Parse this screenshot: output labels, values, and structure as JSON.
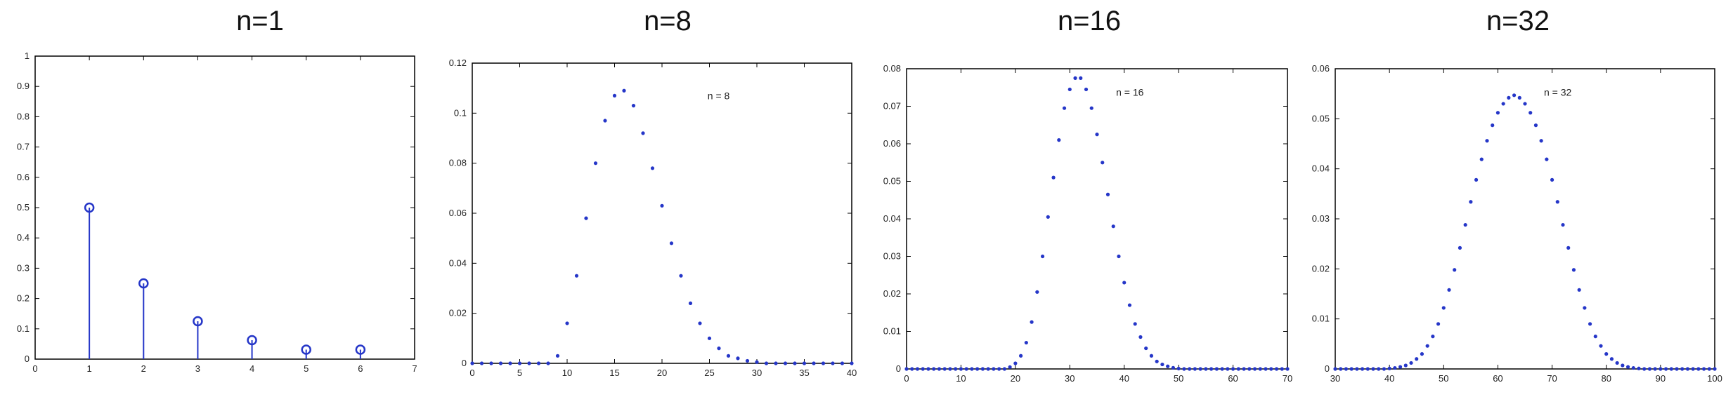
{
  "colors": {
    "marker": "#2536c8",
    "axis": "#000000"
  },
  "chart_data": [
    {
      "type": "stem",
      "title": "n=1",
      "annotation": "",
      "marker": "circle",
      "xlim": [
        0,
        7
      ],
      "ylim": [
        0,
        1
      ],
      "xticks": [
        0,
        1,
        2,
        3,
        4,
        5,
        6,
        7
      ],
      "yticks": [
        0,
        0.1,
        0.2,
        0.3,
        0.4,
        0.5,
        0.6,
        0.7,
        0.8,
        0.9,
        1
      ],
      "x": [
        1,
        2,
        3,
        4,
        5,
        6
      ],
      "y": [
        0.5,
        0.25,
        0.125,
        0.0625,
        0.03125,
        0.03125
      ]
    },
    {
      "type": "scatter",
      "title": "n=8",
      "annotation": "n = 8",
      "marker": "dot",
      "xlim": [
        0,
        40
      ],
      "ylim": [
        0,
        0.12
      ],
      "xticks": [
        0,
        5,
        10,
        15,
        20,
        25,
        30,
        35,
        40
      ],
      "yticks": [
        0,
        0.02,
        0.04,
        0.06,
        0.08,
        0.1,
        0.12
      ],
      "x": [
        0,
        1,
        2,
        3,
        4,
        5,
        6,
        7,
        8,
        9,
        10,
        11,
        12,
        13,
        14,
        15,
        16,
        17,
        18,
        19,
        20,
        21,
        22,
        23,
        24,
        25,
        26,
        27,
        28,
        29,
        30,
        31,
        32,
        33,
        34,
        35,
        36,
        37,
        38,
        39,
        40
      ],
      "y": [
        0,
        0,
        0,
        0,
        0,
        0,
        0,
        0,
        0,
        0.003,
        0.016,
        0.035,
        0.058,
        0.08,
        0.097,
        0.107,
        0.109,
        0.103,
        0.092,
        0.078,
        0.063,
        0.048,
        0.035,
        0.024,
        0.016,
        0.01,
        0.006,
        0.003,
        0.002,
        0.001,
        0.0005,
        0,
        0,
        0,
        0,
        0,
        0,
        0,
        0,
        0,
        0
      ]
    },
    {
      "type": "scatter",
      "title": "n=16",
      "annotation": "n = 16",
      "marker": "dot",
      "xlim": [
        0,
        70
      ],
      "ylim": [
        0,
        0.08
      ],
      "xticks": [
        0,
        10,
        20,
        30,
        40,
        50,
        60,
        70
      ],
      "yticks": [
        0,
        0.01,
        0.02,
        0.03,
        0.04,
        0.05,
        0.06,
        0.07,
        0.08
      ],
      "x": [
        0,
        1,
        2,
        3,
        4,
        5,
        6,
        7,
        8,
        9,
        10,
        11,
        12,
        13,
        14,
        15,
        16,
        17,
        18,
        19,
        20,
        21,
        22,
        23,
        24,
        25,
        26,
        27,
        28,
        29,
        30,
        31,
        32,
        33,
        34,
        35,
        36,
        37,
        38,
        39,
        40,
        41,
        42,
        43,
        44,
        45,
        46,
        47,
        48,
        49,
        50,
        51,
        52,
        53,
        54,
        55,
        56,
        57,
        58,
        59,
        60,
        61,
        62,
        63,
        64,
        65,
        66,
        67,
        68,
        69,
        70
      ],
      "y": [
        0,
        0,
        0,
        0,
        0,
        0,
        0,
        0,
        0,
        0,
        0,
        0,
        0,
        0,
        0,
        0,
        0,
        0,
        0,
        0.0005,
        0.0015,
        0.0035,
        0.007,
        0.0125,
        0.0205,
        0.03,
        0.0405,
        0.051,
        0.061,
        0.0695,
        0.0745,
        0.0775,
        0.0775,
        0.0745,
        0.0695,
        0.0625,
        0.055,
        0.0465,
        0.038,
        0.03,
        0.023,
        0.017,
        0.012,
        0.0085,
        0.0055,
        0.0035,
        0.002,
        0.0012,
        0.0007,
        0.0003,
        0.0001,
        0,
        0,
        0,
        0,
        0,
        0,
        0,
        0,
        0,
        0,
        0,
        0,
        0,
        0,
        0,
        0,
        0,
        0,
        0,
        0
      ]
    },
    {
      "type": "scatter",
      "title": "n=32",
      "annotation": "n = 32",
      "marker": "dot",
      "xlim": [
        30,
        100
      ],
      "ylim": [
        0,
        0.06
      ],
      "xticks": [
        30,
        40,
        50,
        60,
        70,
        80,
        90,
        100
      ],
      "yticks": [
        0,
        0.01,
        0.02,
        0.03,
        0.04,
        0.05,
        0.06
      ],
      "x": [
        30,
        31,
        32,
        33,
        34,
        35,
        36,
        37,
        38,
        39,
        40,
        41,
        42,
        43,
        44,
        45,
        46,
        47,
        48,
        49,
        50,
        51,
        52,
        53,
        54,
        55,
        56,
        57,
        58,
        59,
        60,
        61,
        62,
        63,
        64,
        65,
        66,
        67,
        68,
        69,
        70,
        71,
        72,
        73,
        74,
        75,
        76,
        77,
        78,
        79,
        80,
        81,
        82,
        83,
        84,
        85,
        86,
        87,
        88,
        89,
        90,
        91,
        92,
        93,
        94,
        95,
        96,
        97,
        98,
        99,
        100
      ],
      "y": [
        0,
        0,
        0,
        0,
        0,
        0,
        0,
        0,
        0,
        0,
        0.0001,
        0.0002,
        0.0004,
        0.0007,
        0.0012,
        0.002,
        0.003,
        0.0046,
        0.0065,
        0.009,
        0.0122,
        0.0158,
        0.0198,
        0.0242,
        0.0288,
        0.0334,
        0.0378,
        0.0419,
        0.0456,
        0.0487,
        0.0512,
        0.053,
        0.0542,
        0.0547,
        0.0542,
        0.053,
        0.0512,
        0.0487,
        0.0456,
        0.0419,
        0.0378,
        0.0334,
        0.0288,
        0.0242,
        0.0198,
        0.0158,
        0.0122,
        0.009,
        0.0065,
        0.0046,
        0.003,
        0.002,
        0.0012,
        0.0007,
        0.0004,
        0.0002,
        0.0001,
        0,
        0,
        0,
        0,
        0,
        0,
        0,
        0,
        0,
        0,
        0,
        0,
        0,
        0
      ]
    }
  ]
}
